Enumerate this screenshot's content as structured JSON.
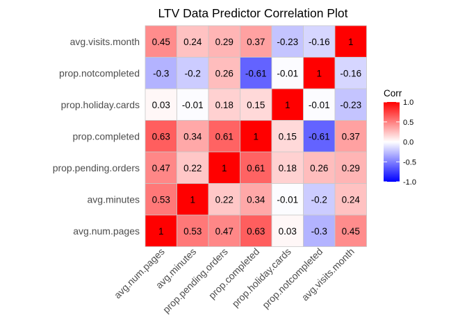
{
  "chart_data": {
    "type": "heatmap",
    "title": "LTV Data Predictor Correlation Plot",
    "x_categories": [
      "avg.num.pages",
      "avg.minutes",
      "prop.pending.orders",
      "prop.completed",
      "prop.holiday.cards",
      "prop.notcompleted",
      "avg.visits.month"
    ],
    "y_categories_top_to_bottom": [
      "avg.visits.month",
      "prop.notcompleted",
      "prop.holiday.cards",
      "prop.completed",
      "prop.pending.orders",
      "avg.minutes",
      "avg.num.pages"
    ],
    "matrix": [
      [
        0.45,
        0.24,
        0.29,
        0.37,
        -0.23,
        -0.16,
        1
      ],
      [
        -0.3,
        -0.2,
        0.26,
        -0.61,
        -0.01,
        1,
        -0.16
      ],
      [
        0.03,
        -0.01,
        0.18,
        0.15,
        1,
        -0.01,
        -0.23
      ],
      [
        0.63,
        0.34,
        0.61,
        1,
        0.15,
        -0.61,
        0.37
      ],
      [
        0.47,
        0.22,
        1,
        0.61,
        0.18,
        0.26,
        0.29
      ],
      [
        0.53,
        1,
        0.22,
        0.34,
        -0.01,
        -0.2,
        0.24
      ],
      [
        1,
        0.53,
        0.47,
        0.63,
        0.03,
        -0.3,
        0.45
      ]
    ],
    "legend": {
      "title": "Corr",
      "ticks": [
        1.0,
        0.5,
        0.0,
        -0.5,
        -1.0
      ],
      "tick_labels": [
        "1.0",
        "0.5",
        "0.0",
        "-0.5",
        "-1.0"
      ],
      "placement": "right"
    },
    "colors": {
      "high": "#ff0000",
      "mid": "#ffffff",
      "low": "#0000ff",
      "cell_border": "#c8c8c8"
    },
    "value_range": [
      -1,
      1
    ]
  }
}
